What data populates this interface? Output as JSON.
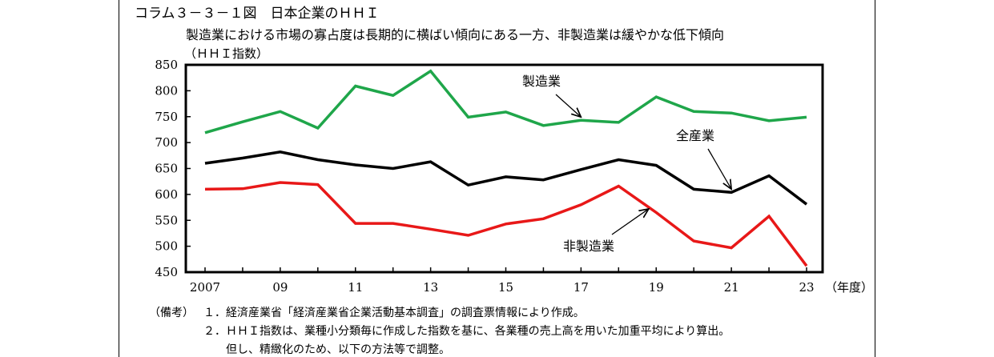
{
  "figure": {
    "title": "コラム３－３－１図　日本企業のＨＨＩ",
    "subtitle": "製造業における市場の寡占度は長期的に横ばい傾向にある一方、非製造業は緩やかな低下傾向",
    "unit_label": "（ＨＨＩ指数）"
  },
  "chart_data": {
    "type": "line",
    "x": [
      2007,
      2008,
      2009,
      2010,
      2011,
      2012,
      2013,
      2014,
      2015,
      2016,
      2017,
      2018,
      2019,
      2020,
      2021,
      2022,
      2023
    ],
    "xtick_values": [
      2007,
      2009,
      2011,
      2013,
      2015,
      2017,
      2019,
      2021,
      2023
    ],
    "xtick_labels": [
      "2007",
      "09",
      "11",
      "13",
      "15",
      "17",
      "19",
      "21",
      "23"
    ],
    "xlabel": "（年度）",
    "ylim": [
      450,
      850
    ],
    "yticks": [
      450,
      500,
      550,
      600,
      650,
      700,
      750,
      800,
      850
    ],
    "grid": false,
    "legend": "inline-annotations",
    "series": [
      {
        "name": "製造業",
        "color": "#1fa64a",
        "values": [
          719,
          740,
          760,
          728,
          809,
          791,
          838,
          749,
          759,
          733,
          743,
          739,
          788,
          760,
          757,
          742,
          749
        ]
      },
      {
        "name": "全産業",
        "color": "#000000",
        "values": [
          660,
          670,
          682,
          667,
          657,
          650,
          663,
          618,
          634,
          628,
          648,
          667,
          656,
          610,
          604,
          636,
          581
        ]
      },
      {
        "name": "非製造業",
        "color": "#e81818",
        "values": [
          610,
          611,
          623,
          619,
          544,
          544,
          533,
          521,
          543,
          553,
          580,
          616,
          565,
          510,
          497,
          558,
          462
        ]
      }
    ],
    "annotations": [
      {
        "text": "製造業",
        "target_series": 0,
        "target_x": 2017
      },
      {
        "text": "全産業",
        "target_series": 1,
        "target_x": 2021
      },
      {
        "text": "非製造業",
        "target_series": 2,
        "target_x": 2018.8
      }
    ]
  },
  "notes": {
    "label": "（備考）",
    "items": [
      "１．経済産業省「経済産業省企業活動基本調査」の調査票情報により作成。",
      "２．ＨＨＩ指数は、業種小分類毎に作成した指数を基に、各業種の売上高を用いた加重平均により算出。"
    ],
    "continuation": "但し、精緻化のため、以下の方法等で調整。"
  }
}
